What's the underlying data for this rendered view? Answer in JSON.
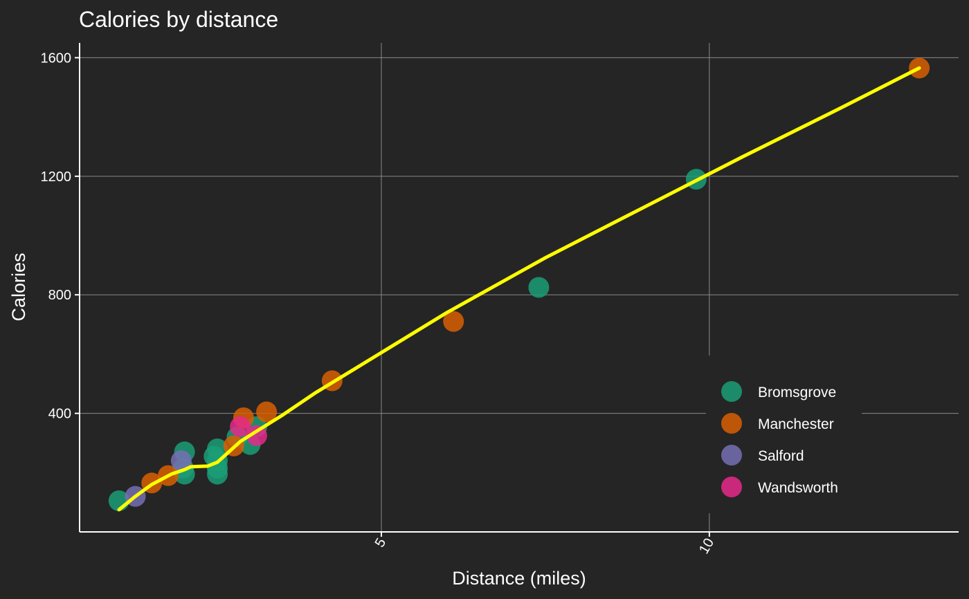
{
  "chart_data": {
    "type": "scatter",
    "title": "Calories by distance",
    "xlabel": "Distance (miles)",
    "ylabel": "Calories",
    "xlim": [
      0.4,
      13.8
    ],
    "ylim": [
      0,
      1650
    ],
    "xticks": [
      5,
      10
    ],
    "yticks": [
      400,
      800,
      1200,
      1600
    ],
    "grid": true,
    "legend_position": "bottom-right",
    "colors": {
      "background": "#252525",
      "smooth_line": "#ffff00",
      "Bromsgrove": "#1b9e77",
      "Manchester": "#d95f02",
      "Salford": "#7570b3",
      "Wandsworth": "#e7298a"
    },
    "series": [
      {
        "name": "Bromsgrove",
        "points": [
          {
            "x": 1.0,
            "y": 105
          },
          {
            "x": 2.0,
            "y": 195
          },
          {
            "x": 1.98,
            "y": 215
          },
          {
            "x": 2.0,
            "y": 270
          },
          {
            "x": 2.5,
            "y": 195
          },
          {
            "x": 2.5,
            "y": 215
          },
          {
            "x": 2.5,
            "y": 240
          },
          {
            "x": 2.45,
            "y": 255
          },
          {
            "x": 2.5,
            "y": 280
          },
          {
            "x": 2.8,
            "y": 320
          },
          {
            "x": 3.0,
            "y": 295
          },
          {
            "x": 3.1,
            "y": 355
          },
          {
            "x": 7.4,
            "y": 825
          },
          {
            "x": 9.8,
            "y": 1190
          }
        ]
      },
      {
        "name": "Manchester",
        "points": [
          {
            "x": 1.5,
            "y": 165
          },
          {
            "x": 1.75,
            "y": 190
          },
          {
            "x": 2.75,
            "y": 290
          },
          {
            "x": 2.9,
            "y": 385
          },
          {
            "x": 3.25,
            "y": 405
          },
          {
            "x": 4.25,
            "y": 510
          },
          {
            "x": 6.1,
            "y": 710
          },
          {
            "x": 13.2,
            "y": 1565
          }
        ]
      },
      {
        "name": "Salford",
        "points": [
          {
            "x": 1.25,
            "y": 120
          },
          {
            "x": 1.95,
            "y": 240
          }
        ]
      },
      {
        "name": "Wandsworth",
        "points": [
          {
            "x": 2.85,
            "y": 355
          },
          {
            "x": 3.1,
            "y": 325
          }
        ]
      }
    ],
    "smooth": [
      {
        "x": 1.0,
        "y": 75
      },
      {
        "x": 1.25,
        "y": 120
      },
      {
        "x": 1.5,
        "y": 160
      },
      {
        "x": 1.8,
        "y": 195
      },
      {
        "x": 2.0,
        "y": 210
      },
      {
        "x": 2.1,
        "y": 220
      },
      {
        "x": 2.35,
        "y": 222
      },
      {
        "x": 2.5,
        "y": 235
      },
      {
        "x": 2.65,
        "y": 265
      },
      {
        "x": 2.85,
        "y": 305
      },
      {
        "x": 3.1,
        "y": 340
      },
      {
        "x": 3.5,
        "y": 395
      },
      {
        "x": 4.0,
        "y": 470
      },
      {
        "x": 5.0,
        "y": 605
      },
      {
        "x": 6.0,
        "y": 740
      },
      {
        "x": 7.5,
        "y": 925
      },
      {
        "x": 9.0,
        "y": 1095
      },
      {
        "x": 10.5,
        "y": 1265
      },
      {
        "x": 12.0,
        "y": 1430
      },
      {
        "x": 13.2,
        "y": 1565
      }
    ]
  }
}
